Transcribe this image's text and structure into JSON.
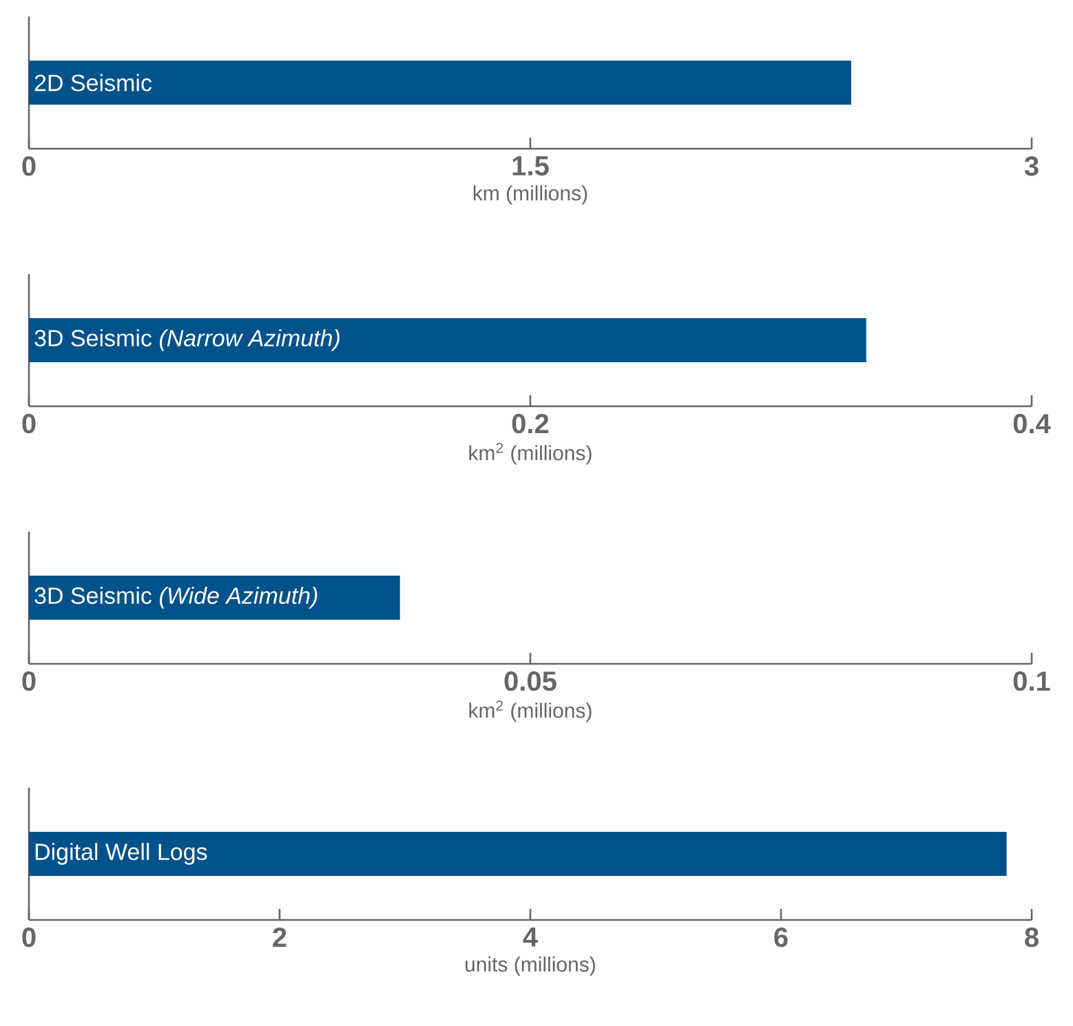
{
  "chart_data": [
    {
      "type": "bar",
      "orientation": "horizontal",
      "categories": [
        "2D Seismic"
      ],
      "values": [
        2.46
      ],
      "color": "#00528a",
      "xlabel": "km (millions)",
      "xlim": [
        0,
        3
      ],
      "xticks": [
        0,
        1.5,
        3
      ]
    },
    {
      "type": "bar",
      "orientation": "horizontal",
      "categories": [
        "3D Seismic *(Narrow Azimuth)*"
      ],
      "values": [
        0.334
      ],
      "color": "#00528a",
      "xlabel": "km$^{2}$ (millions)",
      "xlim": [
        0,
        0.4
      ],
      "xticks": [
        0,
        0.2,
        0.4
      ]
    },
    {
      "type": "bar",
      "orientation": "horizontal",
      "categories": [
        "3D Seismic *(Wide Azimuth)*"
      ],
      "values": [
        0.037
      ],
      "color": "#00528a",
      "xlabel": "km$^{2}$ (millions)",
      "xlim": [
        0,
        0.1
      ],
      "xticks": [
        0,
        0.05,
        0.1
      ]
    },
    {
      "type": "bar",
      "orientation": "horizontal",
      "categories": [
        "Digital Well Logs"
      ],
      "values": [
        7.8
      ],
      "color": "#00528a",
      "xlabel": "units (millions)",
      "xlim": [
        0,
        8
      ],
      "xticks": [
        0,
        2,
        4,
        6,
        8
      ]
    }
  ]
}
